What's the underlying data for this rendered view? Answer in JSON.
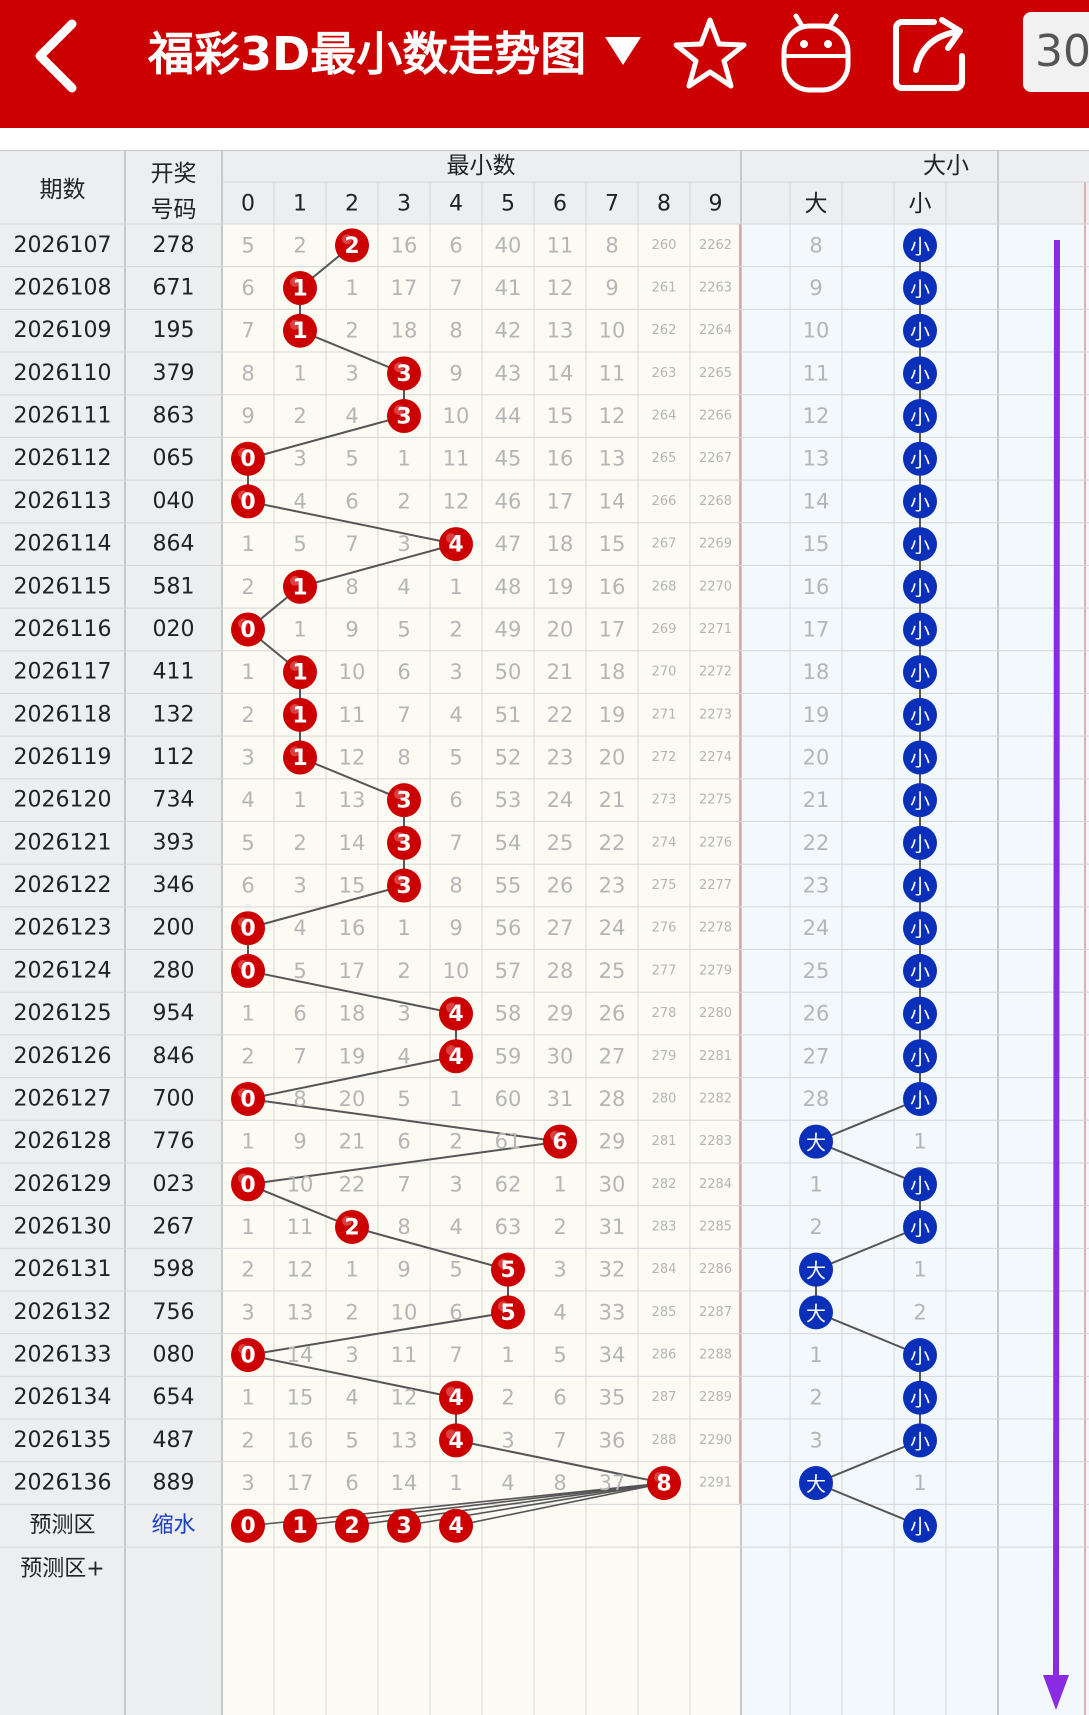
{
  "header": {
    "title": "福彩3D最小数走势图",
    "dropdown_icon": "triangle-down-icon",
    "back_icon": "chevron-left-icon",
    "favorite_icon": "star-icon",
    "robot_icon": "robot-icon",
    "share_icon": "share-icon",
    "count_button": "30"
  },
  "colors": {
    "brand_red": "#cc0000",
    "ball_red": "#cc0000",
    "ball_blue": "#0a2fb8",
    "arrow_purple": "#8a2be2",
    "miss_text": "#b5b5b5"
  },
  "table": {
    "col_issue": "期数",
    "col_draw_line1": "开奖",
    "col_draw_line2": "号码",
    "group_min": "最小数",
    "group_size": "大小",
    "digits": [
      "0",
      "1",
      "2",
      "3",
      "4",
      "5",
      "6",
      "7",
      "8",
      "9"
    ],
    "size_labels": [
      "大",
      "小"
    ],
    "rows": [
      {
        "issue": "2026107",
        "draw": "278",
        "min": 2,
        "cells": [
          "5",
          "2",
          "2",
          "16",
          "6",
          "40",
          "11",
          "8",
          "260",
          "2262"
        ],
        "size": "小",
        "big": "8",
        "small": "小"
      },
      {
        "issue": "2026108",
        "draw": "671",
        "min": 1,
        "cells": [
          "6",
          "1",
          "1",
          "17",
          "7",
          "41",
          "12",
          "9",
          "261",
          "2263"
        ],
        "size": "小",
        "big": "9",
        "small": "小"
      },
      {
        "issue": "2026109",
        "draw": "195",
        "min": 1,
        "cells": [
          "7",
          "1",
          "2",
          "18",
          "8",
          "42",
          "13",
          "10",
          "262",
          "2264"
        ],
        "size": "小",
        "big": "10",
        "small": "小"
      },
      {
        "issue": "2026110",
        "draw": "379",
        "min": 3,
        "cells": [
          "8",
          "1",
          "3",
          "3",
          "9",
          "43",
          "14",
          "11",
          "263",
          "2265"
        ],
        "size": "小",
        "big": "11",
        "small": "小"
      },
      {
        "issue": "2026111",
        "draw": "863",
        "min": 3,
        "cells": [
          "9",
          "2",
          "4",
          "3",
          "10",
          "44",
          "15",
          "12",
          "264",
          "2266"
        ],
        "size": "小",
        "big": "12",
        "small": "小"
      },
      {
        "issue": "2026112",
        "draw": "065",
        "min": 0,
        "cells": [
          "0",
          "3",
          "5",
          "1",
          "11",
          "45",
          "16",
          "13",
          "265",
          "2267"
        ],
        "size": "小",
        "big": "13",
        "small": "小"
      },
      {
        "issue": "2026113",
        "draw": "040",
        "min": 0,
        "cells": [
          "0",
          "4",
          "6",
          "2",
          "12",
          "46",
          "17",
          "14",
          "266",
          "2268"
        ],
        "size": "小",
        "big": "14",
        "small": "小"
      },
      {
        "issue": "2026114",
        "draw": "864",
        "min": 4,
        "cells": [
          "1",
          "5",
          "7",
          "3",
          "4",
          "47",
          "18",
          "15",
          "267",
          "2269"
        ],
        "size": "小",
        "big": "15",
        "small": "小"
      },
      {
        "issue": "2026115",
        "draw": "581",
        "min": 1,
        "cells": [
          "2",
          "1",
          "8",
          "4",
          "1",
          "48",
          "19",
          "16",
          "268",
          "2270"
        ],
        "size": "小",
        "big": "16",
        "small": "小"
      },
      {
        "issue": "2026116",
        "draw": "020",
        "min": 0,
        "cells": [
          "0",
          "1",
          "9",
          "5",
          "2",
          "49",
          "20",
          "17",
          "269",
          "2271"
        ],
        "size": "小",
        "big": "17",
        "small": "小"
      },
      {
        "issue": "2026117",
        "draw": "411",
        "min": 1,
        "cells": [
          "1",
          "1",
          "10",
          "6",
          "3",
          "50",
          "21",
          "18",
          "270",
          "2272"
        ],
        "size": "小",
        "big": "18",
        "small": "小"
      },
      {
        "issue": "2026118",
        "draw": "132",
        "min": 1,
        "cells": [
          "2",
          "1",
          "11",
          "7",
          "4",
          "51",
          "22",
          "19",
          "271",
          "2273"
        ],
        "size": "小",
        "big": "19",
        "small": "小"
      },
      {
        "issue": "2026119",
        "draw": "112",
        "min": 1,
        "cells": [
          "3",
          "1",
          "12",
          "8",
          "5",
          "52",
          "23",
          "20",
          "272",
          "2274"
        ],
        "size": "小",
        "big": "20",
        "small": "小"
      },
      {
        "issue": "2026120",
        "draw": "734",
        "min": 3,
        "cells": [
          "4",
          "1",
          "13",
          "3",
          "6",
          "53",
          "24",
          "21",
          "273",
          "2275"
        ],
        "size": "小",
        "big": "21",
        "small": "小"
      },
      {
        "issue": "2026121",
        "draw": "393",
        "min": 3,
        "cells": [
          "5",
          "2",
          "14",
          "3",
          "7",
          "54",
          "25",
          "22",
          "274",
          "2276"
        ],
        "size": "小",
        "big": "22",
        "small": "小"
      },
      {
        "issue": "2026122",
        "draw": "346",
        "min": 3,
        "cells": [
          "6",
          "3",
          "15",
          "3",
          "8",
          "55",
          "26",
          "23",
          "275",
          "2277"
        ],
        "size": "小",
        "big": "23",
        "small": "小"
      },
      {
        "issue": "2026123",
        "draw": "200",
        "min": 0,
        "cells": [
          "0",
          "4",
          "16",
          "1",
          "9",
          "56",
          "27",
          "24",
          "276",
          "2278"
        ],
        "size": "小",
        "big": "24",
        "small": "小"
      },
      {
        "issue": "2026124",
        "draw": "280",
        "min": 0,
        "cells": [
          "0",
          "5",
          "17",
          "2",
          "10",
          "57",
          "28",
          "25",
          "277",
          "2279"
        ],
        "size": "小",
        "big": "25",
        "small": "小"
      },
      {
        "issue": "2026125",
        "draw": "954",
        "min": 4,
        "cells": [
          "1",
          "6",
          "18",
          "3",
          "4",
          "58",
          "29",
          "26",
          "278",
          "2280"
        ],
        "size": "小",
        "big": "26",
        "small": "小"
      },
      {
        "issue": "2026126",
        "draw": "846",
        "min": 4,
        "cells": [
          "2",
          "7",
          "19",
          "4",
          "4",
          "59",
          "30",
          "27",
          "279",
          "2281"
        ],
        "size": "小",
        "big": "27",
        "small": "小"
      },
      {
        "issue": "2026127",
        "draw": "700",
        "min": 0,
        "cells": [
          "0",
          "8",
          "20",
          "5",
          "1",
          "60",
          "31",
          "28",
          "280",
          "2282"
        ],
        "size": "小",
        "big": "28",
        "small": "小"
      },
      {
        "issue": "2026128",
        "draw": "776",
        "min": 6,
        "cells": [
          "1",
          "9",
          "21",
          "6",
          "2",
          "61",
          "6",
          "29",
          "281",
          "2283"
        ],
        "size": "大",
        "big": "大",
        "small": "1"
      },
      {
        "issue": "2026129",
        "draw": "023",
        "min": 0,
        "cells": [
          "0",
          "10",
          "22",
          "7",
          "3",
          "62",
          "1",
          "30",
          "282",
          "2284"
        ],
        "size": "小",
        "big": "1",
        "small": "小"
      },
      {
        "issue": "2026130",
        "draw": "267",
        "min": 2,
        "cells": [
          "1",
          "11",
          "2",
          "8",
          "4",
          "63",
          "2",
          "31",
          "283",
          "2285"
        ],
        "size": "小",
        "big": "2",
        "small": "小"
      },
      {
        "issue": "2026131",
        "draw": "598",
        "min": 5,
        "cells": [
          "2",
          "12",
          "1",
          "9",
          "5",
          "5",
          "3",
          "32",
          "284",
          "2286"
        ],
        "size": "大",
        "big": "大",
        "small": "1"
      },
      {
        "issue": "2026132",
        "draw": "756",
        "min": 5,
        "cells": [
          "3",
          "13",
          "2",
          "10",
          "6",
          "5",
          "4",
          "33",
          "285",
          "2287"
        ],
        "size": "大",
        "big": "大",
        "small": "2"
      },
      {
        "issue": "2026133",
        "draw": "080",
        "min": 0,
        "cells": [
          "0",
          "14",
          "3",
          "11",
          "7",
          "1",
          "5",
          "34",
          "286",
          "2288"
        ],
        "size": "小",
        "big": "1",
        "small": "小"
      },
      {
        "issue": "2026134",
        "draw": "654",
        "min": 4,
        "cells": [
          "1",
          "15",
          "4",
          "12",
          "4",
          "2",
          "6",
          "35",
          "287",
          "2289"
        ],
        "size": "小",
        "big": "2",
        "small": "小"
      },
      {
        "issue": "2026135",
        "draw": "487",
        "min": 4,
        "cells": [
          "2",
          "16",
          "5",
          "13",
          "4",
          "3",
          "7",
          "36",
          "288",
          "2290"
        ],
        "size": "小",
        "big": "3",
        "small": "小"
      },
      {
        "issue": "2026136",
        "draw": "889",
        "min": 8,
        "cells": [
          "3",
          "17",
          "6",
          "14",
          "1",
          "4",
          "8",
          "37",
          "8",
          "2291"
        ],
        "size": "大",
        "big": "大",
        "small": "1"
      }
    ],
    "predict_label": "预测区",
    "predict_action": "缩水",
    "predict_balls": [
      "0",
      "1",
      "2",
      "3",
      "4"
    ],
    "predict_small": "小",
    "predict_plus_label": "预测区+"
  }
}
